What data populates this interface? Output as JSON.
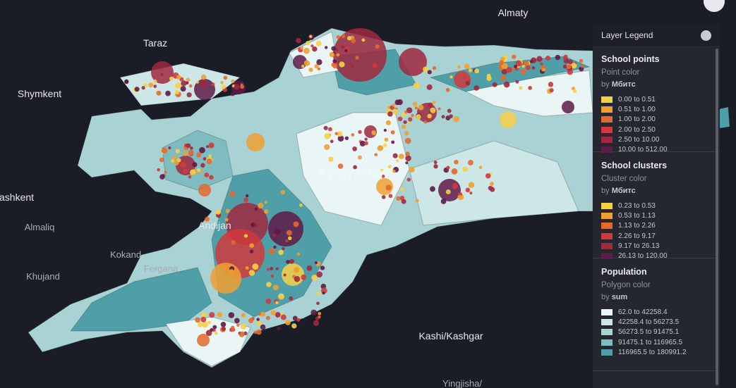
{
  "map": {
    "labels": [
      "Almaty",
      "Taraz",
      "Shymkent",
      "Tashkent",
      "Almaliq",
      "Andijan",
      "Kokand",
      "Fergana",
      "Khujand",
      "Kashi/Kashgar",
      "Yingjisha/",
      "Kyrgyzstan"
    ]
  },
  "legend": {
    "title": "Layer Legend",
    "layers": [
      {
        "name": "School points",
        "subtitle": "Point color",
        "by": "by",
        "field": "Мбитс",
        "items": [
          {
            "label": "0.00 to 0.51",
            "color": "#f6d046"
          },
          {
            "label": "0.51 to 1.00",
            "color": "#f0a030"
          },
          {
            "label": "1.00 to 2.00",
            "color": "#e3692d"
          },
          {
            "label": "2.00 to 2.50",
            "color": "#cf3a3c"
          },
          {
            "label": "2.50 to 10.00",
            "color": "#a0283f"
          },
          {
            "label": "10.00 to 512.00",
            "color": "#5e1a48"
          }
        ]
      },
      {
        "name": "School clusters",
        "subtitle": "Cluster color",
        "by": "by",
        "field": "Мбитс",
        "items": [
          {
            "label": "0.23 to 0.53",
            "color": "#f6d046"
          },
          {
            "label": "0.53 to 1.13",
            "color": "#f0a030"
          },
          {
            "label": "1.13 to 2.26",
            "color": "#e3692d"
          },
          {
            "label": "2.26 to 9.17",
            "color": "#cf3a3c"
          },
          {
            "label": "9.17 to 26.13",
            "color": "#a0283f"
          },
          {
            "label": "26.13 to 120.00",
            "color": "#5e1a48"
          }
        ]
      },
      {
        "name": "Population",
        "subtitle": "Polygon color",
        "by": "by",
        "field": "sum",
        "items": [
          {
            "label": "62.0 to 42258.4",
            "color": "#eaf6f6"
          },
          {
            "label": "42258.4 to 56273.5",
            "color": "#cde6e6"
          },
          {
            "label": "56273.5 to 91475.1",
            "color": "#a8d2d3"
          },
          {
            "label": "91475.1 to 116965.5",
            "color": "#7fbcc0"
          },
          {
            "label": "116965.5 to 180991.2",
            "color": "#4f9fa8"
          }
        ]
      }
    ]
  }
}
